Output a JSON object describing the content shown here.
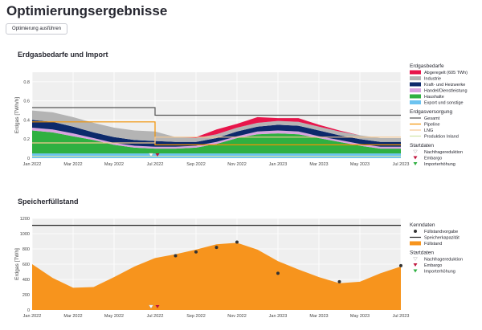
{
  "header": {
    "title": "Optimierungsergebnisse",
    "run_button_label": "Optimierung ausführen"
  },
  "chart_data": [
    {
      "type": "area",
      "title": "Erdgasbedarfe und Import",
      "xlabel": "",
      "ylabel": "Erdgas [TWh/h]",
      "ylim": [
        0,
        0.9
      ],
      "yticks": [
        0,
        0.2,
        0.4,
        0.6,
        0.8
      ],
      "xticks": [
        "Jan 2022",
        "Mar 2022",
        "May 2022",
        "Jul 2022",
        "Sep 2022",
        "Nov 2022",
        "Jan 2023",
        "Mar 2023",
        "May 2023",
        "Jul 2023"
      ],
      "grid": true,
      "legend_position": "right",
      "x": [
        "Jan 2022",
        "Feb 2022",
        "Mar 2022",
        "Apr 2022",
        "May 2022",
        "Jun 2022",
        "Jul 2022",
        "Aug 2022",
        "Sep 2022",
        "Oct 2022",
        "Nov 2022",
        "Dec 2022",
        "Jan 2023",
        "Feb 2023",
        "Mar 2023",
        "Apr 2023",
        "May 2023",
        "Jun 2023",
        "Jul 2023"
      ],
      "series": [
        {
          "name": "Export und sonstige",
          "color": "#6cc3f0",
          "values": [
            0.05,
            0.05,
            0.05,
            0.05,
            0.05,
            0.05,
            0.05,
            0.05,
            0.05,
            0.05,
            0.05,
            0.05,
            0.05,
            0.05,
            0.05,
            0.05,
            0.05,
            0.05,
            0.05
          ]
        },
        {
          "name": "Haushalte",
          "color": "#2fb041",
          "values": [
            0.24,
            0.22,
            0.18,
            0.14,
            0.09,
            0.06,
            0.05,
            0.05,
            0.06,
            0.1,
            0.16,
            0.2,
            0.21,
            0.2,
            0.16,
            0.12,
            0.08,
            0.05,
            0.05
          ]
        },
        {
          "name": "Handel/Dienstleistung",
          "color": "#d8a3e0",
          "values": [
            0.03,
            0.03,
            0.03,
            0.02,
            0.02,
            0.02,
            0.02,
            0.02,
            0.02,
            0.02,
            0.02,
            0.03,
            0.03,
            0.03,
            0.02,
            0.02,
            0.02,
            0.02,
            0.02
          ]
        },
        {
          "name": "Kraft- und Heizwerke",
          "color": "#0d2a6b",
          "values": [
            0.08,
            0.08,
            0.07,
            0.06,
            0.06,
            0.06,
            0.06,
            0.05,
            0.04,
            0.04,
            0.05,
            0.05,
            0.06,
            0.06,
            0.06,
            0.05,
            0.05,
            0.05,
            0.05
          ]
        },
        {
          "name": "Industrie",
          "color": "#b4b4b4",
          "values": [
            0.1,
            0.1,
            0.1,
            0.1,
            0.1,
            0.1,
            0.1,
            0.05,
            0.04,
            0.04,
            0.04,
            0.04,
            0.04,
            0.04,
            0.04,
            0.04,
            0.04,
            0.04,
            0.04
          ]
        },
        {
          "name": "Abgeregelt (605 TWh)",
          "color": "#e8154b",
          "values": [
            0,
            0,
            0,
            0,
            0,
            0,
            0,
            0,
            0.01,
            0.05,
            0.04,
            0.06,
            0.03,
            0.04,
            0.02,
            0.01,
            0,
            0,
            0
          ]
        }
      ],
      "lines": [
        {
          "name": "Gesamt",
          "color": "#555555",
          "x": [
            "Jan 2022",
            "Jul 2022",
            "Jul 2022",
            "Jul 2023"
          ],
          "values": [
            0.53,
            0.53,
            0.45,
            0.45
          ]
        },
        {
          "name": "Pipeline",
          "color": "#f39200",
          "x": [
            "Jan 2022",
            "Jul 2022",
            "Jul 2022",
            "Jul 2023"
          ],
          "values": [
            0.38,
            0.38,
            0.14,
            0.14
          ]
        },
        {
          "name": "LNG",
          "color": "#f7c991",
          "x": [
            "Jan 2022",
            "Jul 2022",
            "Jul 2022",
            "Jul 2023"
          ],
          "values": [
            0.16,
            0.16,
            0.22,
            0.22
          ]
        },
        {
          "name": "Produktion Inland",
          "color": "#cfe3a6",
          "x": [
            "Jan 2022",
            "Jul 2023"
          ],
          "values": [
            0.02,
            0.02
          ]
        }
      ],
      "markers": [
        {
          "name": "Nachfragereduktion",
          "color": "#ffffff",
          "x": "Jul 2022"
        },
        {
          "name": "Embargo",
          "color": "#c0143c",
          "x": "Jul 2022"
        }
      ],
      "legend": {
        "groups": [
          {
            "title": "Erdgasbedarfe",
            "items": [
              {
                "label": "Abgeregelt (605 TWh)",
                "kind": "area",
                "color": "#e8154b"
              },
              {
                "label": "Industrie",
                "kind": "area",
                "color": "#b4b4b4"
              },
              {
                "label": "Kraft- und Heizwerke",
                "kind": "area",
                "color": "#0d2a6b"
              },
              {
                "label": "Handel/Dienstleistung",
                "kind": "area",
                "color": "#d8a3e0"
              },
              {
                "label": "Haushalte",
                "kind": "area",
                "color": "#2fb041"
              },
              {
                "label": "Export und sonstige",
                "kind": "area",
                "color": "#6cc3f0"
              }
            ]
          },
          {
            "title": "Erdgasversorgung",
            "items": [
              {
                "label": "Gesamt",
                "kind": "line",
                "color": "#555555"
              },
              {
                "label": "Pipeline",
                "kind": "line",
                "color": "#f39200"
              },
              {
                "label": "LNG",
                "kind": "line",
                "color": "#f7c991"
              },
              {
                "label": "Produktion Inland",
                "kind": "line",
                "color": "#cfe3a6"
              }
            ]
          },
          {
            "title": "Startdaten",
            "items": [
              {
                "label": "Nachfragereduktion",
                "kind": "tri",
                "color": "#ffffff"
              },
              {
                "label": "Embargo",
                "kind": "tri",
                "color": "#c0143c"
              },
              {
                "label": "Importerhöhung",
                "kind": "tri",
                "color": "#2fb041"
              }
            ]
          }
        ]
      }
    },
    {
      "type": "area",
      "title": "Speicherfüllstand",
      "xlabel": "",
      "ylabel": "Erdgas [TWh]",
      "ylim": [
        0,
        1200
      ],
      "yticks": [
        0,
        200,
        400,
        600,
        800,
        1000,
        1200
      ],
      "xticks": [
        "Jan 2022",
        "Mar 2022",
        "May 2022",
        "Jul 2022",
        "Sep 2022",
        "Nov 2022",
        "Jan 2023",
        "Mar 2023",
        "May 2023",
        "Jul 2023"
      ],
      "grid": true,
      "legend_position": "right",
      "series": [
        {
          "name": "Füllstand",
          "color": "#f7941d",
          "x": [
            "Jan 2022",
            "Feb 2022",
            "Mar 2022",
            "Apr 2022",
            "May 2022",
            "Jun 2022",
            "Jul 2022",
            "Aug 2022",
            "Sep 2022",
            "Oct 2022",
            "Nov 2022",
            "Dec 2022",
            "Jan 2023",
            "Feb 2023",
            "Mar 2023",
            "Apr 2023",
            "May 2023",
            "Jun 2023",
            "Jul 2023"
          ],
          "values": [
            600,
            420,
            290,
            300,
            430,
            570,
            680,
            730,
            790,
            860,
            880,
            790,
            640,
            530,
            430,
            350,
            370,
            480,
            570
          ]
        }
      ],
      "lines": [
        {
          "name": "Speicherkapazität",
          "color": "#222222",
          "x": [
            "Jan 2022",
            "Jul 2023"
          ],
          "values": [
            1110,
            1110
          ]
        }
      ],
      "points": {
        "name": "Füllstandvorgabe",
        "color": "#333333",
        "x": [
          "Aug 2022",
          "Sep 2022",
          "Oct 2022",
          "Nov 2022",
          "Jan 2023",
          "Apr 2023",
          "Jul 2023"
        ],
        "values": [
          710,
          760,
          820,
          890,
          480,
          370,
          580
        ]
      },
      "markers": [
        {
          "name": "Nachfragereduktion",
          "color": "#ffffff",
          "x": "Jul 2022"
        },
        {
          "name": "Embargo",
          "color": "#c0143c",
          "x": "Jul 2022"
        }
      ],
      "legend": {
        "groups": [
          {
            "title": "Kenndaten",
            "items": [
              {
                "label": "Füllstandvorgabe",
                "kind": "dot",
                "color": "#333333"
              },
              {
                "label": "Speicherkapazität",
                "kind": "line",
                "color": "#222222"
              },
              {
                "label": "Füllstand",
                "kind": "area",
                "color": "#f7941d"
              }
            ]
          },
          {
            "title": "Startdaten",
            "items": [
              {
                "label": "Nachfragereduktion",
                "kind": "tri",
                "color": "#ffffff"
              },
              {
                "label": "Embargo",
                "kind": "tri",
                "color": "#c0143c"
              },
              {
                "label": "Importerhöhung",
                "kind": "tri",
                "color": "#2fb041"
              }
            ]
          }
        ]
      }
    }
  ]
}
